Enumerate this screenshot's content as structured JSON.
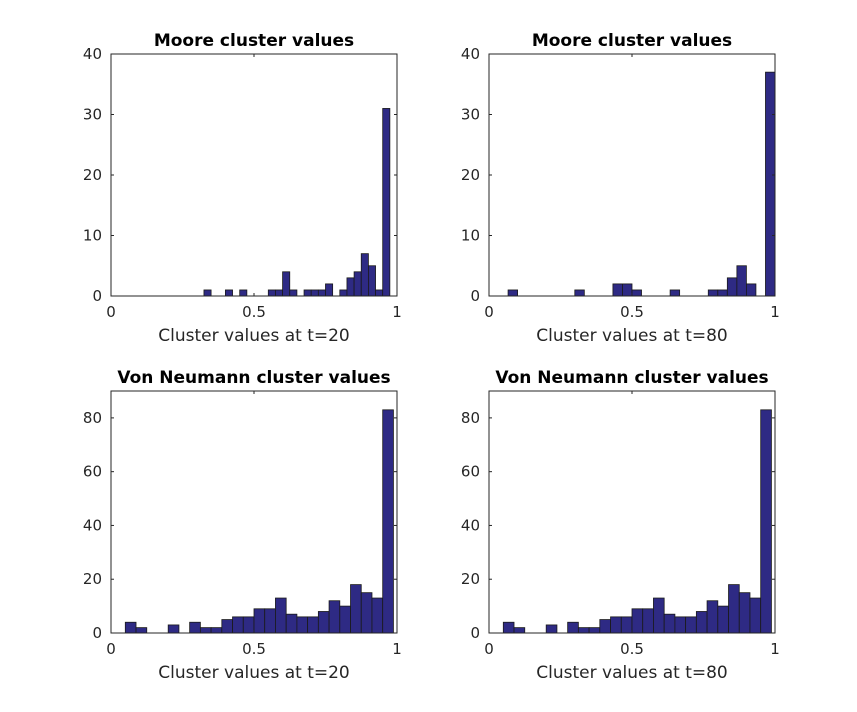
{
  "chart_data": [
    {
      "type": "bar",
      "title": "Moore cluster values",
      "xlabel": "Cluster values at t=20",
      "ylabel": "",
      "xlim": [
        0,
        1
      ],
      "ylim": [
        0,
        40
      ],
      "bin_width": 0.025,
      "xticks": [
        "0",
        "0.5",
        "1"
      ],
      "xtick_values": [
        0,
        0.5,
        1
      ],
      "yticks": [
        "0",
        "10",
        "20",
        "30",
        "40"
      ],
      "ytick_values": [
        0,
        10,
        20,
        30,
        40
      ],
      "bins": [
        {
          "x": 0.325,
          "value": 1
        },
        {
          "x": 0.4,
          "value": 1
        },
        {
          "x": 0.45,
          "value": 1
        },
        {
          "x": 0.55,
          "value": 1
        },
        {
          "x": 0.575,
          "value": 1
        },
        {
          "x": 0.6,
          "value": 4
        },
        {
          "x": 0.625,
          "value": 1
        },
        {
          "x": 0.675,
          "value": 1
        },
        {
          "x": 0.7,
          "value": 1
        },
        {
          "x": 0.725,
          "value": 1
        },
        {
          "x": 0.75,
          "value": 2
        },
        {
          "x": 0.8,
          "value": 1
        },
        {
          "x": 0.825,
          "value": 3
        },
        {
          "x": 0.85,
          "value": 4
        },
        {
          "x": 0.875,
          "value": 7
        },
        {
          "x": 0.9,
          "value": 5
        },
        {
          "x": 0.925,
          "value": 1
        },
        {
          "x": 0.95,
          "value": 31
        }
      ]
    },
    {
      "type": "bar",
      "title": "Moore cluster values",
      "xlabel": "Cluster values at t=80",
      "ylabel": "",
      "xlim": [
        0,
        1
      ],
      "ylim": [
        0,
        40
      ],
      "bin_width": 0.0333,
      "xticks": [
        "0",
        "0.5",
        "1"
      ],
      "xtick_values": [
        0,
        0.5,
        1
      ],
      "yticks": [
        "0",
        "10",
        "20",
        "30",
        "40"
      ],
      "ytick_values": [
        0,
        10,
        20,
        30,
        40
      ],
      "bins": [
        {
          "x": 0.0667,
          "value": 1
        },
        {
          "x": 0.3,
          "value": 1
        },
        {
          "x": 0.4333,
          "value": 2
        },
        {
          "x": 0.4667,
          "value": 2
        },
        {
          "x": 0.5,
          "value": 1
        },
        {
          "x": 0.6333,
          "value": 1
        },
        {
          "x": 0.7667,
          "value": 1
        },
        {
          "x": 0.8,
          "value": 1
        },
        {
          "x": 0.8333,
          "value": 3
        },
        {
          "x": 0.8667,
          "value": 5
        },
        {
          "x": 0.9,
          "value": 2
        },
        {
          "x": 0.9667,
          "value": 37
        }
      ]
    },
    {
      "type": "bar",
      "title": "Von Neumann cluster values",
      "xlabel": "Cluster values at t=20",
      "ylabel": "",
      "xlim": [
        0,
        1
      ],
      "ylim": [
        0,
        90
      ],
      "bin_width": 0.0375,
      "xticks": [
        "0",
        "0.5",
        "1"
      ],
      "xtick_values": [
        0,
        0.5,
        1
      ],
      "yticks": [
        "0",
        "20",
        "40",
        "60",
        "80"
      ],
      "ytick_values": [
        0,
        20,
        40,
        60,
        80
      ],
      "bins": [
        {
          "x": 0.05,
          "value": 4
        },
        {
          "x": 0.0875,
          "value": 2
        },
        {
          "x": 0.125,
          "value": 0
        },
        {
          "x": 0.1625,
          "value": 0
        },
        {
          "x": 0.2,
          "value": 3
        },
        {
          "x": 0.2375,
          "value": 0
        },
        {
          "x": 0.275,
          "value": 4
        },
        {
          "x": 0.3125,
          "value": 2
        },
        {
          "x": 0.35,
          "value": 2
        },
        {
          "x": 0.3875,
          "value": 5
        },
        {
          "x": 0.425,
          "value": 6
        },
        {
          "x": 0.4625,
          "value": 6
        },
        {
          "x": 0.5,
          "value": 9
        },
        {
          "x": 0.5375,
          "value": 9
        },
        {
          "x": 0.575,
          "value": 13
        },
        {
          "x": 0.6125,
          "value": 7
        },
        {
          "x": 0.65,
          "value": 6
        },
        {
          "x": 0.6875,
          "value": 6
        },
        {
          "x": 0.725,
          "value": 8
        },
        {
          "x": 0.7625,
          "value": 12
        },
        {
          "x": 0.8,
          "value": 10
        },
        {
          "x": 0.8375,
          "value": 18
        },
        {
          "x": 0.875,
          "value": 15
        },
        {
          "x": 0.9125,
          "value": 13
        },
        {
          "x": 0.95,
          "value": 83
        }
      ]
    },
    {
      "type": "bar",
      "title": "Von Neumann cluster values",
      "xlabel": "Cluster values at t=80",
      "ylabel": "",
      "xlim": [
        0,
        1
      ],
      "ylim": [
        0,
        90
      ],
      "bin_width": 0.0375,
      "xticks": [
        "0",
        "0.5",
        "1"
      ],
      "xtick_values": [
        0,
        0.5,
        1
      ],
      "yticks": [
        "0",
        "20",
        "40",
        "60",
        "80"
      ],
      "ytick_values": [
        0,
        20,
        40,
        60,
        80
      ],
      "bins": [
        {
          "x": 0.05,
          "value": 4
        },
        {
          "x": 0.0875,
          "value": 2
        },
        {
          "x": 0.125,
          "value": 0
        },
        {
          "x": 0.1625,
          "value": 0
        },
        {
          "x": 0.2,
          "value": 3
        },
        {
          "x": 0.2375,
          "value": 0
        },
        {
          "x": 0.275,
          "value": 4
        },
        {
          "x": 0.3125,
          "value": 2
        },
        {
          "x": 0.35,
          "value": 2
        },
        {
          "x": 0.3875,
          "value": 5
        },
        {
          "x": 0.425,
          "value": 6
        },
        {
          "x": 0.4625,
          "value": 6
        },
        {
          "x": 0.5,
          "value": 9
        },
        {
          "x": 0.5375,
          "value": 9
        },
        {
          "x": 0.575,
          "value": 13
        },
        {
          "x": 0.6125,
          "value": 7
        },
        {
          "x": 0.65,
          "value": 6
        },
        {
          "x": 0.6875,
          "value": 6
        },
        {
          "x": 0.725,
          "value": 8
        },
        {
          "x": 0.7625,
          "value": 12
        },
        {
          "x": 0.8,
          "value": 10
        },
        {
          "x": 0.8375,
          "value": 18
        },
        {
          "x": 0.875,
          "value": 15
        },
        {
          "x": 0.9125,
          "value": 13
        },
        {
          "x": 0.95,
          "value": 83
        }
      ]
    }
  ],
  "colors": {
    "bar_fill": "#2e2a84",
    "bar_edge": "#1a1a1a",
    "axes": "#262626"
  }
}
